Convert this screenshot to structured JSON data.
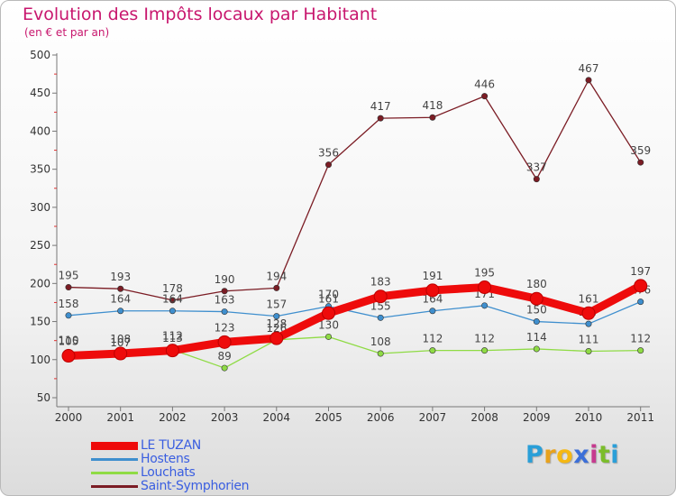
{
  "title": "Evolution des Impôts locaux par Habitant",
  "subtitle": "(en € et par an)",
  "brand": {
    "letters": [
      "P",
      "r",
      "o",
      "x",
      "i",
      "t",
      "i"
    ],
    "colors": [
      "#2a9fd8",
      "#e8a21d",
      "#f5b813",
      "#3c6fd8",
      "#c63b8f",
      "#7bbd2b",
      "#2a9fd8"
    ]
  },
  "chart_data": {
    "type": "line",
    "categories": [
      "2000",
      "2001",
      "2002",
      "2003",
      "2004",
      "2005",
      "2006",
      "2007",
      "2008",
      "2009",
      "2010",
      "2011"
    ],
    "ylim": [
      50,
      500
    ],
    "yticks": [
      50,
      100,
      150,
      200,
      250,
      300,
      350,
      400,
      450,
      500
    ],
    "grid": false,
    "series": [
      {
        "name": "Saint-Symphorien",
        "color": "#7b1c24",
        "values": [
          195,
          193,
          178,
          190,
          194,
          356,
          417,
          418,
          446,
          337,
          467,
          359
        ]
      },
      {
        "name": "Hostens",
        "color": "#3f8fce",
        "values": [
          158,
          164,
          164,
          163,
          157,
          170,
          155,
          164,
          171,
          150,
          147,
          176
        ]
      },
      {
        "name": "Louchats",
        "color": "#8fdb45",
        "values": [
          110,
          107,
          113,
          89,
          126,
          130,
          108,
          112,
          112,
          114,
          111,
          112
        ]
      },
      {
        "name": "LE TUZAN",
        "color": "#ee0b0b",
        "values": [
          105,
          108,
          112,
          123,
          128,
          161,
          183,
          191,
          195,
          180,
          161,
          197
        ]
      }
    ],
    "labels": {
      "Saint-Symphorien": [
        "195",
        "193",
        "178",
        "190",
        "194",
        "356",
        "417",
        "418",
        "446",
        "337",
        "467",
        "359"
      ],
      "Hostens": [
        "158",
        "164",
        "164",
        "163",
        "157",
        "170",
        "155",
        "164",
        "171",
        "150",
        "147",
        "176"
      ],
      "Louchats": [
        "110",
        "107",
        "113",
        "89",
        "126",
        "130",
        "108",
        "112",
        "112",
        "114",
        "111",
        "112"
      ],
      "LE TUZAN": [
        "105",
        "108",
        "112",
        "123",
        "128",
        "161",
        "183",
        "191",
        "195",
        "180",
        "161",
        "197"
      ]
    }
  },
  "legend": [
    {
      "label": "LE TUZAN",
      "color": "#ee0b0b"
    },
    {
      "label": "Hostens",
      "color": "#3f8fce"
    },
    {
      "label": "Louchats",
      "color": "#8fdb45"
    },
    {
      "label": "Saint-Symphorien",
      "color": "#7b1c24"
    }
  ]
}
